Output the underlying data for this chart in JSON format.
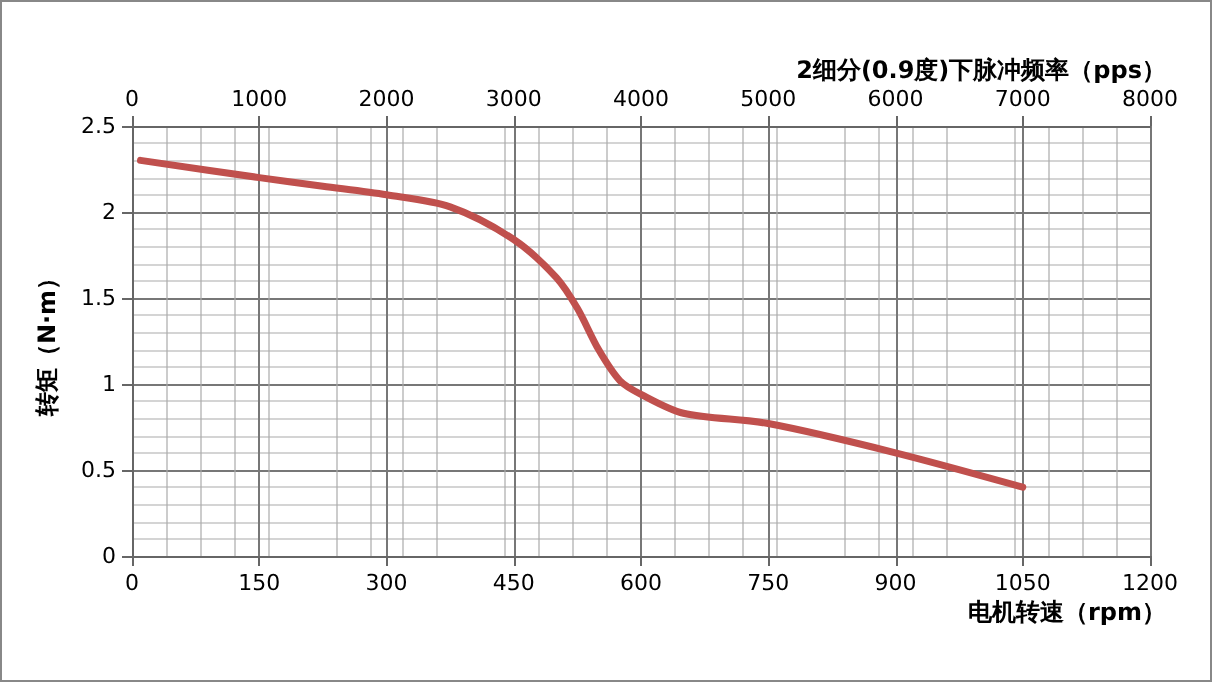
{
  "chart_data": {
    "type": "line",
    "x2label": "2细分(0.9度)下脉冲频率（pps）",
    "xlabel": "电机转速（rpm）",
    "ylabel": "转矩（N·m）",
    "xlim": [
      0,
      1200
    ],
    "xticks": [
      0,
      150,
      300,
      450,
      600,
      750,
      900,
      1050,
      1200
    ],
    "x2lim": [
      0,
      8000
    ],
    "x2ticks": [
      0,
      1000,
      2000,
      3000,
      4000,
      5000,
      6000,
      7000,
      8000
    ],
    "ylim": [
      0,
      2.5
    ],
    "yticks": [
      0,
      0.5,
      1,
      1.5,
      2,
      2.5
    ],
    "grid": true,
    "marker": "none",
    "line_style": "solid",
    "series": [
      {
        "color": "#c0504d",
        "x": [
          10,
          150,
          225,
          300,
          375,
          450,
          500,
          525,
          550,
          575,
          600,
          650,
          750,
          900,
          1050
        ],
        "values": [
          2.3,
          2.2,
          2.15,
          2.1,
          2.03,
          1.84,
          1.62,
          1.44,
          1.2,
          1.02,
          0.94,
          0.83,
          0.77,
          0.6,
          0.4
        ]
      }
    ]
  }
}
